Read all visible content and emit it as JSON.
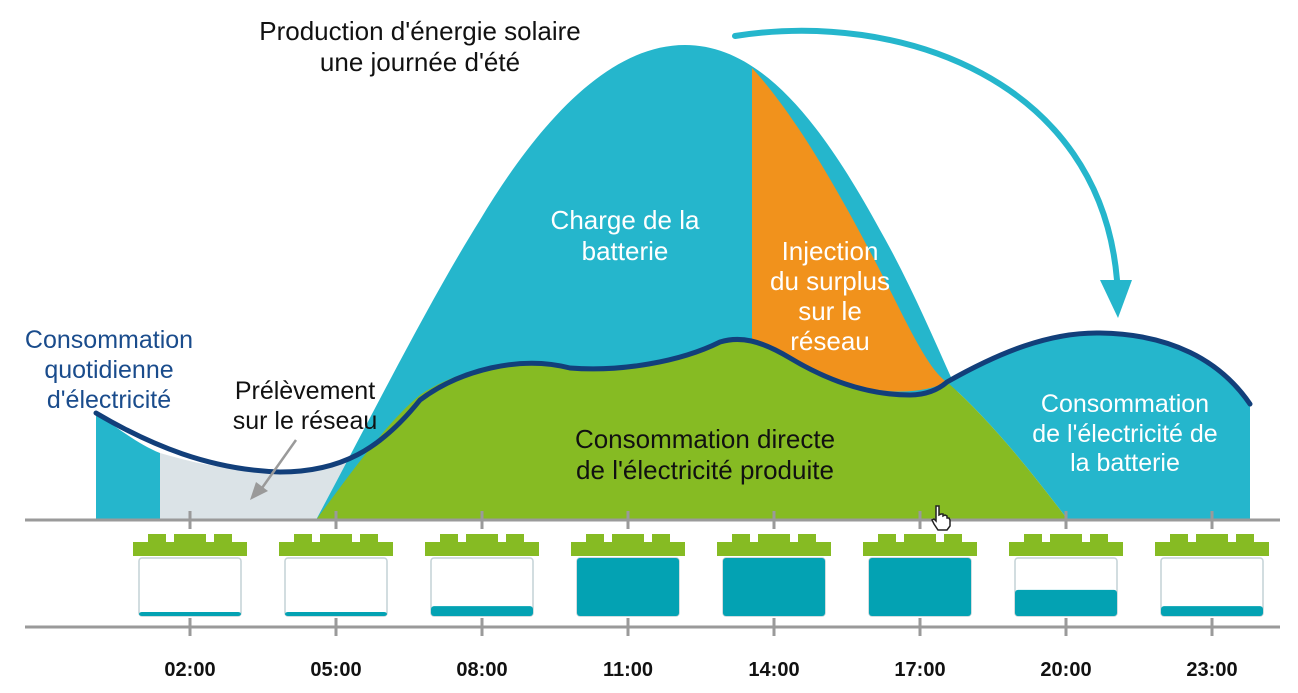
{
  "title": {
    "line1": "Production d'énergie solaire",
    "line2": "une journée d'été"
  },
  "areas": {
    "battery_charge": {
      "line1": "Charge de la",
      "line2": "batterie"
    },
    "surplus_injection": {
      "line1": "Injection",
      "line2": "du surplus",
      "line3": "sur le",
      "line4": "réseau"
    },
    "direct_consumption": {
      "line1": "Consommation directe",
      "line2": "de l'électricité produite"
    },
    "battery_consumption": {
      "line1": "Consommation",
      "line2": "de l'électricité de",
      "line3": "la batterie"
    },
    "grid_draw": {
      "line1": "Prélèvement",
      "line2": "sur le réseau"
    }
  },
  "consumption_curve_label": {
    "line1": "Consommation",
    "line2": "quotidienne",
    "line3": "d'électricité"
  },
  "timeline": [
    {
      "time": "02:00",
      "battery_level": 0.05
    },
    {
      "time": "05:00",
      "battery_level": 0.05
    },
    {
      "time": "08:00",
      "battery_level": 0.17
    },
    {
      "time": "11:00",
      "battery_level": 1.0
    },
    {
      "time": "14:00",
      "battery_level": 1.0
    },
    {
      "time": "17:00",
      "battery_level": 1.0
    },
    {
      "time": "20:00",
      "battery_level": 0.45
    },
    {
      "time": "23:00",
      "battery_level": 0.17
    }
  ],
  "colors": {
    "production_blue": "#25b6cc",
    "surplus_orange": "#f1921c",
    "direct_green": "#86bb23",
    "grid_grey": "#dbe3e7",
    "consumption_line": "#123f7a",
    "battery_fill": "#03a2b3",
    "battery_cap": "#86bb23",
    "axis_grey": "#9a9a9a"
  },
  "icons": {
    "arrow": "curved-arrow-icon",
    "cursor": "hand-cursor-icon"
  }
}
